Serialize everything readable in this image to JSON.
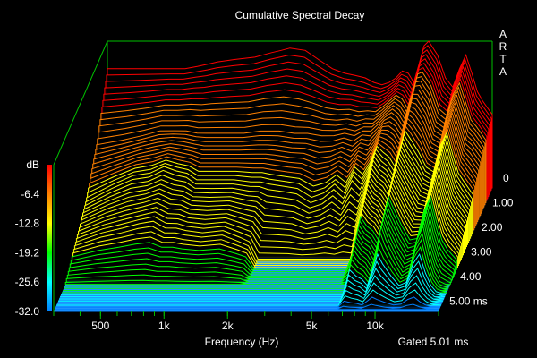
{
  "chart_data": {
    "type": "area",
    "subtype": "waterfall-3d",
    "title": "Cumulative Spectral Decay",
    "brand": "ARTA",
    "xlabel": "Frequency (Hz)",
    "x_scale": "log",
    "x_ticks": [
      "500",
      "1k",
      "2k",
      "5k",
      "10k"
    ],
    "z_unit": "dB",
    "z_ticks": [
      "-6.4",
      "-12.8",
      "-19.2",
      "-25.6",
      "-32.0"
    ],
    "z_range": [
      -32.0,
      0
    ],
    "time_ticks": [
      "0",
      "1.00",
      "2.00",
      "3.00",
      "4.00",
      "5.00 ms"
    ],
    "time_range_ms": [
      0,
      5.01
    ],
    "gate_label": "Gated 5.01 ms",
    "x_freq_hz": [
      300,
      400,
      500,
      600,
      700,
      800,
      900,
      1000,
      1200,
      1500,
      1800,
      2000,
      2200,
      2600,
      3000,
      3500,
      4000,
      4500,
      5000,
      5500,
      6000,
      6500,
      7000,
      7500,
      8000,
      8500,
      9000,
      9500,
      10000,
      11000,
      12000,
      13000,
      14000,
      15000,
      16000,
      17000,
      18000,
      20000
    ],
    "series": [
      {
        "values": [
          -6,
          -6,
          -6,
          -6,
          -6,
          -5.5,
          -5,
          -4.5,
          -4,
          -3.5,
          -2.5,
          -2,
          -1.5,
          -2,
          -4,
          -6,
          -7,
          -7.5,
          -8,
          -9,
          -9.5,
          -9,
          -8,
          -6.5,
          -7,
          -9,
          -5,
          -1,
          0,
          -3,
          -8,
          -10,
          -6,
          -3,
          -7,
          -11,
          -13,
          -16
        ]
      },
      {
        "values": [
          -17,
          -16,
          -15,
          -14,
          -14,
          -14,
          -14.5,
          -14.5,
          -14.5,
          -14.5,
          -14,
          -14,
          -14,
          -14.5,
          -14.5,
          -15,
          -15,
          -14.5,
          -15,
          -14,
          -14,
          -12.5,
          -11,
          -10,
          -11,
          -13,
          -10,
          -6,
          -6,
          -9,
          -14,
          -15,
          -10,
          -8,
          -12,
          -16,
          -17,
          -20
        ]
      },
      {
        "values": [
          -24,
          -21,
          -19,
          -18.5,
          -17,
          -18,
          -18.5,
          -20,
          -20,
          -20,
          -20.5,
          -20.5,
          -21,
          -21.5,
          -22,
          -24,
          -23,
          -21,
          -23,
          -19,
          -21,
          -18,
          -14,
          -16,
          -17,
          -19,
          -15,
          -11,
          -13,
          -16,
          -19,
          -20,
          -14,
          -11,
          -16,
          -20,
          -22,
          -25
        ]
      },
      {
        "values": [
          -28,
          -26,
          -25,
          -24,
          -23.5,
          -25,
          -25,
          -25.5,
          -26,
          -25.5,
          -27,
          -28,
          -32,
          -32,
          -32,
          -32,
          -32,
          -32,
          -32,
          -32,
          -32,
          -26,
          -19,
          -21,
          -22,
          -24,
          -19,
          -15,
          -17,
          -21,
          -24,
          -24,
          -18,
          -15,
          -20,
          -24,
          -26,
          -29
        ]
      },
      {
        "values": [
          -32,
          -32,
          -32,
          -32,
          -32,
          -32,
          -32,
          -32,
          -32,
          -32,
          -32,
          -32,
          -32,
          -32,
          -32,
          -32,
          -32,
          -32,
          -32,
          -32,
          -32,
          -32,
          -24,
          -26,
          -27,
          -29,
          -24,
          -19,
          -22,
          -26,
          -29,
          -28,
          -22,
          -19,
          -25,
          -29,
          -31,
          -32
        ]
      },
      {
        "values": [
          -32,
          -32,
          -32,
          -32,
          -32,
          -32,
          -32,
          -32,
          -32,
          -32,
          -32,
          -32,
          -32,
          -32,
          -32,
          -32,
          -32,
          -32,
          -32,
          -32,
          -32,
          -32,
          -32,
          -32,
          -32,
          -32,
          -32,
          -32,
          -32,
          -32,
          -32,
          -32,
          -32,
          -32,
          -32,
          -32,
          -32,
          -32
        ]
      }
    ],
    "colors": {
      "background": "#000000",
      "frame": "#00c000",
      "floor": "#1e90ff",
      "text": "#ffffff",
      "colormap": [
        "#ff0000",
        "#ff8000",
        "#ffff00",
        "#00ff00",
        "#00ffff",
        "#0080ff"
      ]
    },
    "grid": false,
    "legend": "colorbar-left"
  }
}
